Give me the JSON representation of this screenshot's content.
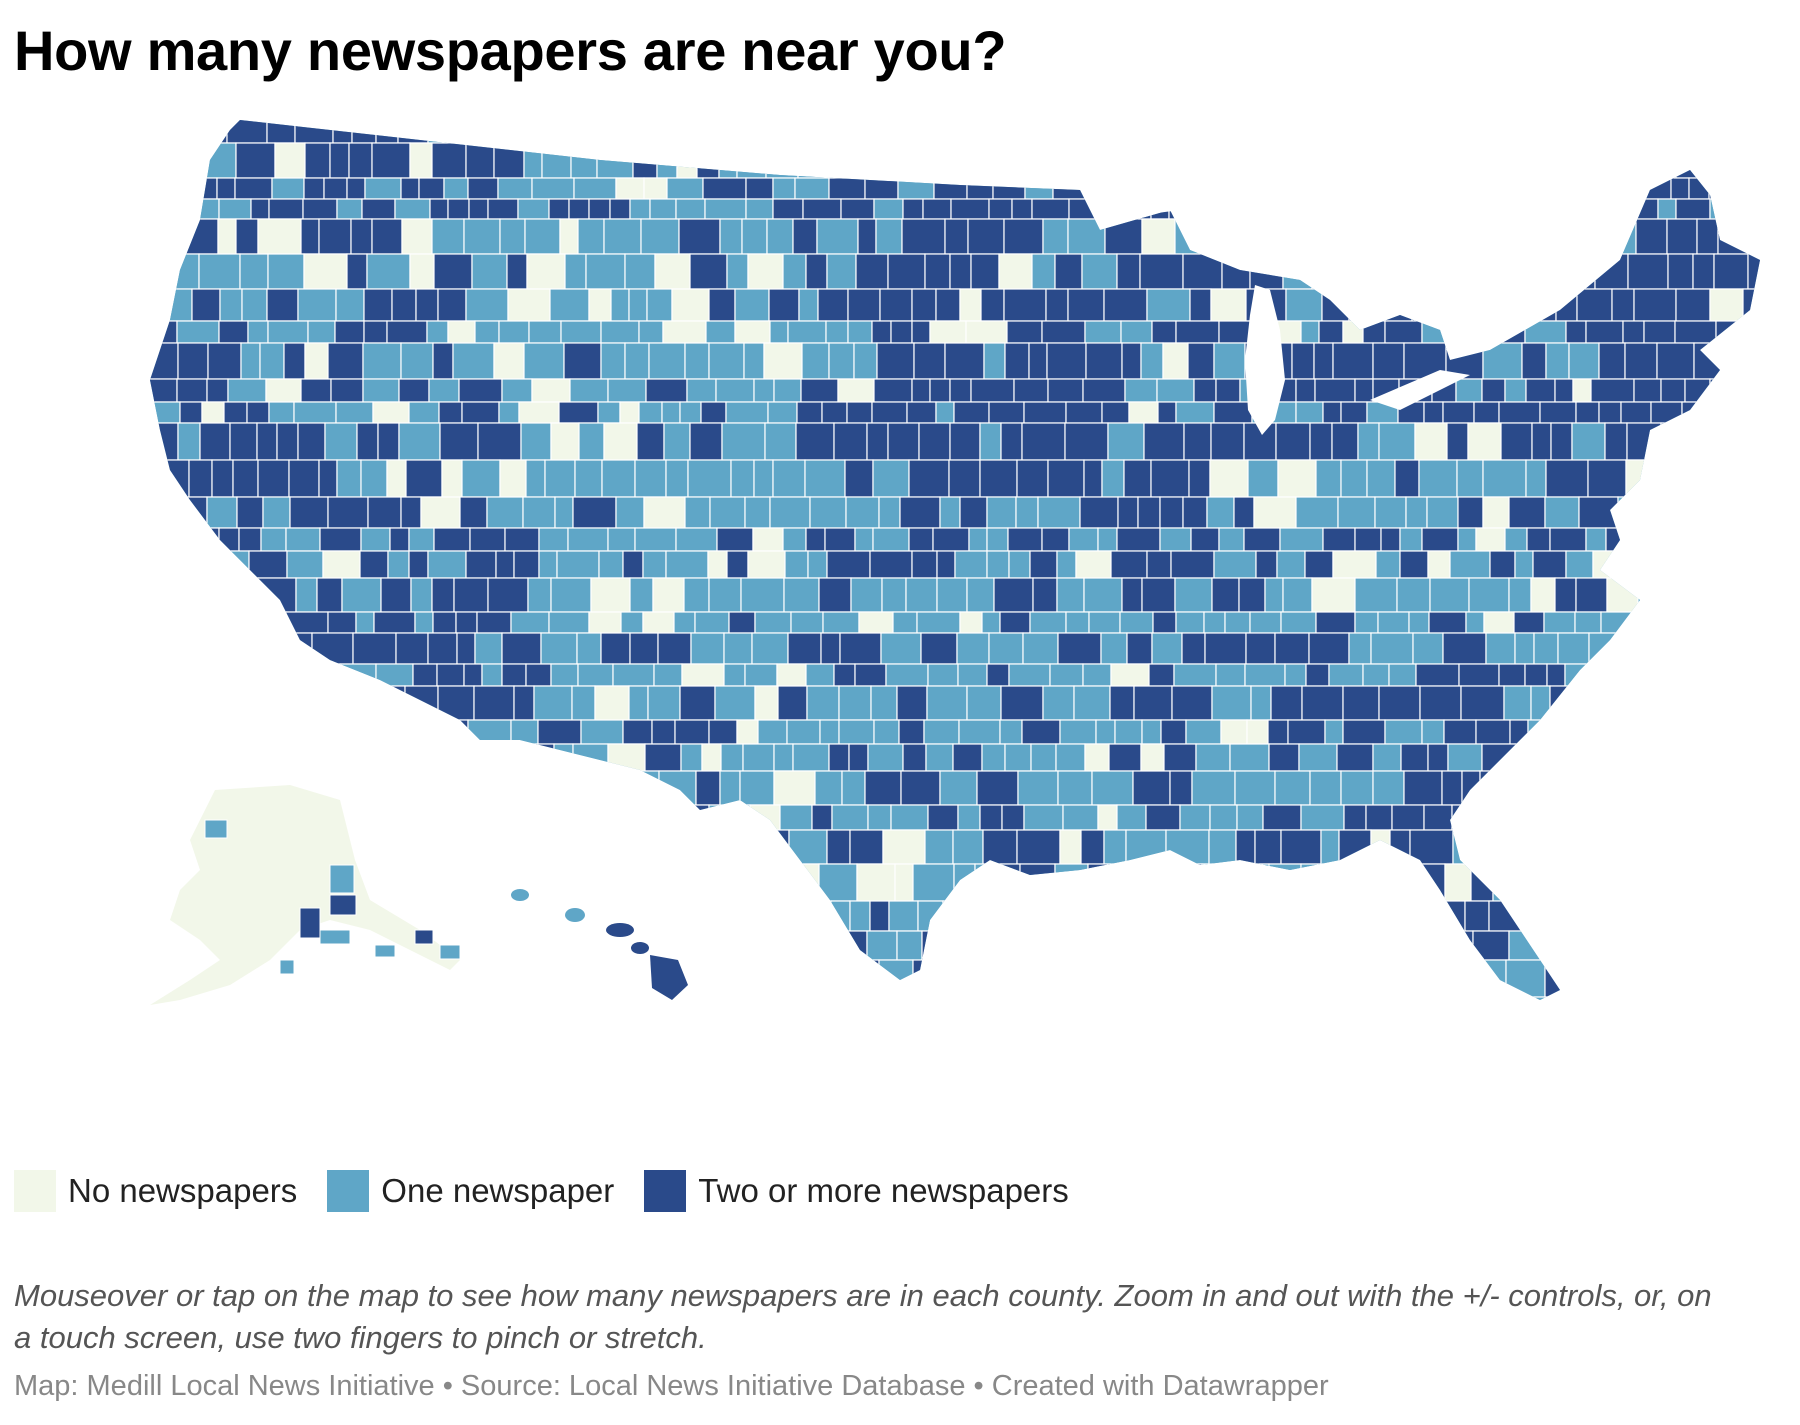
{
  "title": "How many newspapers are near you?",
  "description": "Mouseover or tap on the map to see how many newspapers are in each county. Zoom in and out with the +/- controls, or, on a touch screen, use two fingers to pinch or stretch.",
  "byline": "Map: Medill Local News Initiative • Source: Local News Initiative Database • Created with Datawrapper",
  "colors": {
    "none": "#f2f7e9",
    "one": "#5fa6c7",
    "two_plus": "#2a4a8a",
    "border": "#ffffff"
  },
  "legend": [
    {
      "label": "No newspapers",
      "color": "#f2f7e9"
    },
    {
      "label": "One newspaper",
      "color": "#5fa6c7"
    },
    {
      "label": "Two or more newspapers",
      "color": "#2a4a8a"
    }
  ],
  "chart_data": {
    "type": "choropleth",
    "region": "United States counties",
    "categories": [
      "No newspapers",
      "One newspaper",
      "Two or more newspapers"
    ]
  }
}
